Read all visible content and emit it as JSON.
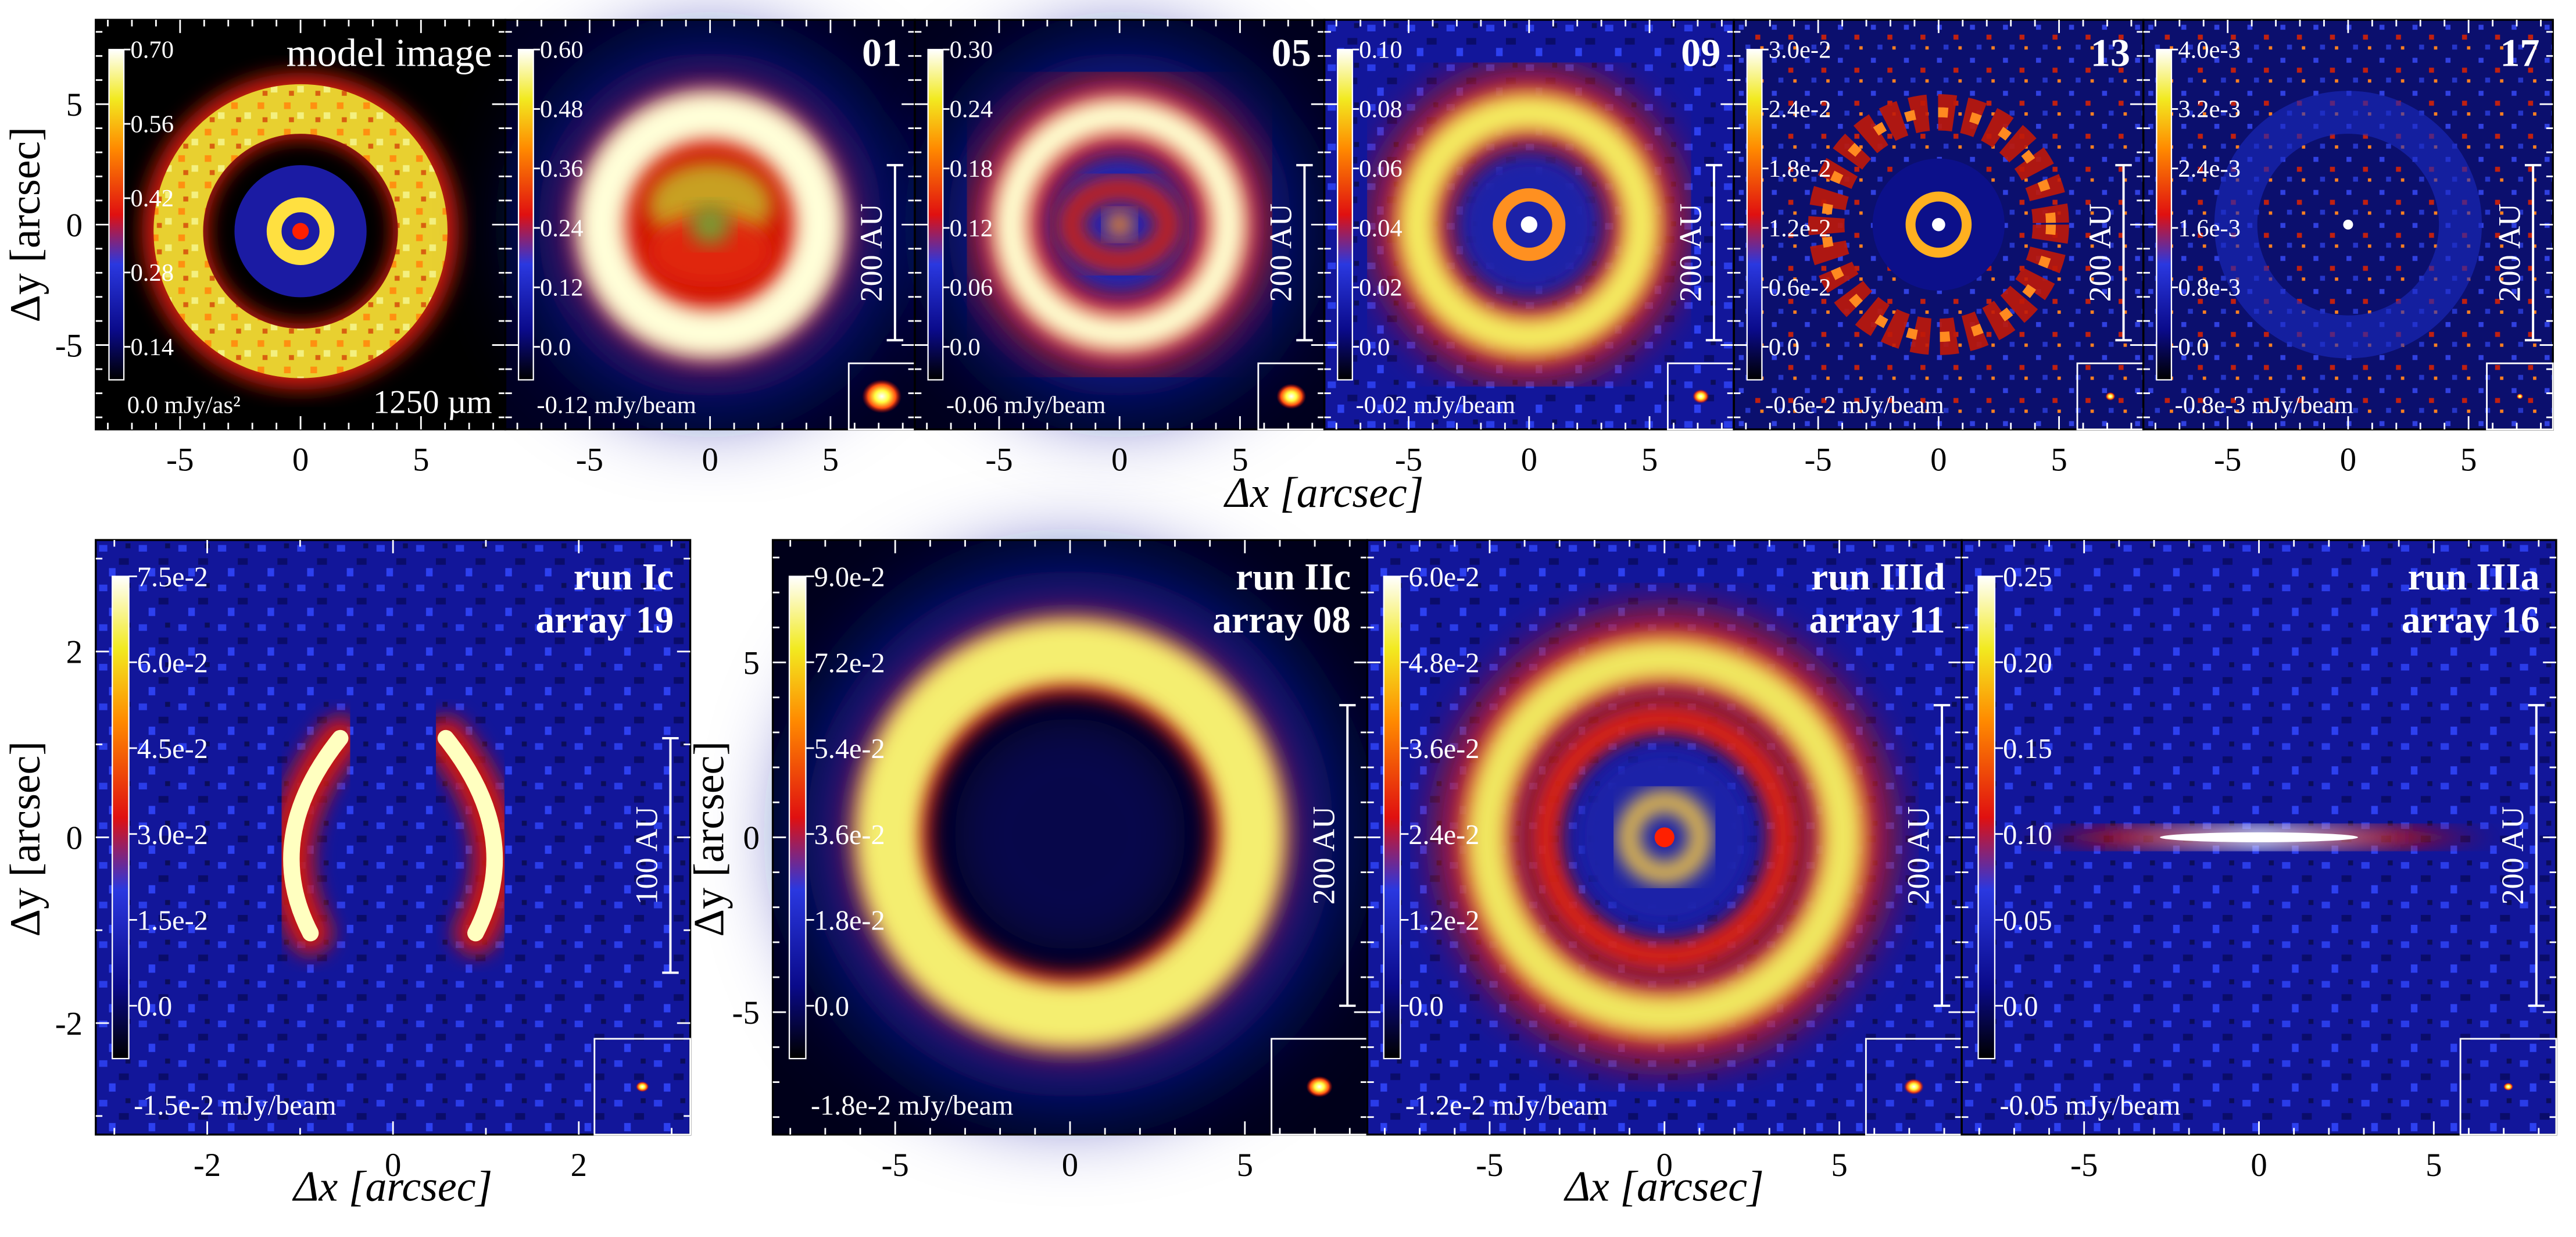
{
  "figure": {
    "top_row": {
      "x_axis_label": "Δx [arcsec]",
      "y_axis_label": "Δy [arcsec]",
      "x_ticks": [
        "-5",
        "0",
        "5"
      ],
      "y_ticks": [
        "5",
        "0",
        "-5"
      ]
    },
    "bottom_row": {
      "x_axis_label": "Δx [arcsec]",
      "y_axis_label": "Δy [arcsec]"
    },
    "panels": [
      {
        "id": "model",
        "title_lines": [
          "model image"
        ],
        "wavelength": "1250 µm",
        "colorbar": [
          "0.70",
          "0.56",
          "0.42",
          "0.28",
          "0.14",
          "0.0 mJy/as²"
        ],
        "scale_bar": "",
        "has_beam": false,
        "x_ticks": [
          "-5",
          "0",
          "5"
        ]
      },
      {
        "id": "p01",
        "title_lines": [
          "01"
        ],
        "colorbar": [
          "0.60",
          "0.48",
          "0.36",
          "0.24",
          "0.12",
          "0.0",
          "-0.12 mJy/beam"
        ],
        "scale_bar": "200 AU",
        "has_beam": true,
        "x_ticks": [
          "-5",
          "0",
          "5"
        ]
      },
      {
        "id": "p05",
        "title_lines": [
          "05"
        ],
        "colorbar": [
          "0.30",
          "0.24",
          "0.18",
          "0.12",
          "0.06",
          "0.0",
          "-0.06 mJy/beam"
        ],
        "scale_bar": "200 AU",
        "has_beam": true,
        "x_ticks": [
          "-5",
          "0",
          "5"
        ]
      },
      {
        "id": "p09",
        "title_lines": [
          "09"
        ],
        "colorbar": [
          "0.10",
          "0.08",
          "0.06",
          "0.04",
          "0.02",
          "0.0",
          "-0.02 mJy/beam"
        ],
        "scale_bar": "200 AU",
        "has_beam": true,
        "x_ticks": [
          "-5",
          "0",
          "5"
        ]
      },
      {
        "id": "p13",
        "title_lines": [
          "13"
        ],
        "colorbar": [
          "3.0e-2",
          "2.4e-2",
          "1.8e-2",
          "1.2e-2",
          "0.6e-2",
          "0.0",
          "-0.6e-2 mJy/beam"
        ],
        "scale_bar": "200 AU",
        "has_beam": true,
        "x_ticks": [
          "-5",
          "0",
          "5"
        ]
      },
      {
        "id": "p17",
        "title_lines": [
          "17"
        ],
        "colorbar": [
          "4.0e-3",
          "3.2e-3",
          "2.4e-3",
          "1.6e-3",
          "0.8e-3",
          "0.0",
          "-0.8e-3 mJy/beam"
        ],
        "scale_bar": "200 AU",
        "has_beam": true,
        "x_ticks": [
          "-5",
          "0",
          "5"
        ]
      },
      {
        "id": "runIc",
        "title_lines": [
          "run Ic",
          "array 19"
        ],
        "colorbar": [
          "7.5e-2",
          "6.0e-2",
          "4.5e-2",
          "3.0e-2",
          "1.5e-2",
          "0.0",
          "-1.5e-2 mJy/beam"
        ],
        "scale_bar": "100 AU",
        "has_beam": true,
        "x_ticks": [
          "-2",
          "0",
          "2"
        ],
        "y_ticks": [
          "2",
          "0",
          "-2"
        ]
      },
      {
        "id": "runIIc",
        "title_lines": [
          "run IIc",
          "array 08"
        ],
        "colorbar": [
          "9.0e-2",
          "7.2e-2",
          "5.4e-2",
          "3.6e-2",
          "1.8e-2",
          "0.0",
          "-1.8e-2 mJy/beam"
        ],
        "scale_bar": "200 AU",
        "has_beam": true,
        "x_ticks": [
          "-5",
          "0",
          "5"
        ],
        "y_ticks": [
          "5",
          "0",
          "-5"
        ]
      },
      {
        "id": "runIIId",
        "title_lines": [
          "run IIId",
          "array 11"
        ],
        "colorbar": [
          "6.0e-2",
          "4.8e-2",
          "3.6e-2",
          "2.4e-2",
          "1.2e-2",
          "0.0",
          "-1.2e-2 mJy/beam"
        ],
        "scale_bar": "200 AU",
        "has_beam": true,
        "x_ticks": [
          "-5",
          "0",
          "5"
        ]
      },
      {
        "id": "runIIIa",
        "title_lines": [
          "run IIIa",
          "array 16"
        ],
        "colorbar": [
          "0.25",
          "0.20",
          "0.15",
          "0.10",
          "0.05",
          "0.0",
          "-0.05 mJy/beam"
        ],
        "scale_bar": "200 AU",
        "has_beam": true,
        "x_ticks": [
          "-5",
          "0",
          "5"
        ]
      }
    ]
  }
}
